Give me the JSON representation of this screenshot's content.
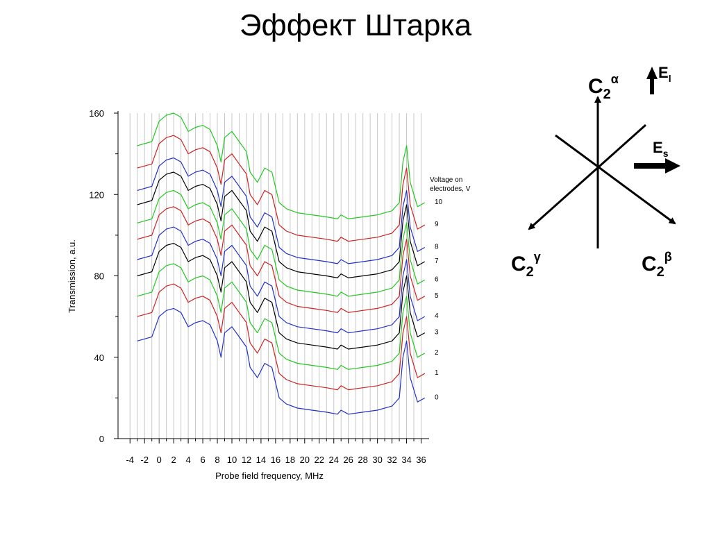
{
  "slide": {
    "title": "Эффект Штарка"
  },
  "chart_data": {
    "type": "line",
    "title": "",
    "xlabel": "Probe field frequency, MHz",
    "ylabel": "Transmission, a.u.",
    "xlim": [
      -4.5,
      37
    ],
    "ylim": [
      0,
      160
    ],
    "x_ticks": [
      -4,
      -2,
      0,
      2,
      4,
      6,
      8,
      10,
      12,
      14,
      16,
      18,
      20,
      22,
      24,
      26,
      28,
      30,
      32,
      34,
      36
    ],
    "y_ticks": [
      0,
      40,
      80,
      120,
      160
    ],
    "grid": "vertical",
    "legend_title": [
      "Voltage on",
      "electrodes, V"
    ],
    "legend_placement": "right",
    "x": [
      -3.0,
      -1.0,
      0.0,
      1.0,
      2.0,
      3.0,
      4.0,
      5.0,
      6.0,
      7.0,
      8.0,
      8.5,
      9.0,
      10.0,
      11.0,
      12.0,
      12.5,
      13.5,
      14.5,
      15.5,
      16.5,
      17.5,
      19.0,
      21.0,
      23.0,
      24.5,
      25.0,
      26.0,
      28.0,
      30.0,
      32.0,
      33.0,
      33.5,
      34.0,
      34.5,
      35.5,
      36.5
    ],
    "base": [
      48,
      50,
      60,
      63,
      64,
      62,
      55,
      57,
      58,
      56,
      48,
      40,
      52,
      55,
      50,
      45,
      35,
      30,
      37,
      35,
      20,
      17,
      15,
      14,
      13,
      12,
      14,
      12,
      13,
      14,
      16,
      20,
      40,
      48,
      30,
      18,
      20
    ],
    "series": [
      {
        "name": "0",
        "offset": 0,
        "color": "#2030c8"
      },
      {
        "name": "1",
        "offset": 12,
        "color": "#d02020"
      },
      {
        "name": "2",
        "offset": 22,
        "color": "#20c820"
      },
      {
        "name": "3",
        "offset": 32,
        "color": "#000000"
      },
      {
        "name": "4",
        "offset": 40,
        "color": "#2030c8"
      },
      {
        "name": "5",
        "offset": 50,
        "color": "#d02020"
      },
      {
        "name": "6",
        "offset": 58,
        "color": "#20c820"
      },
      {
        "name": "7",
        "offset": 67,
        "color": "#000000"
      },
      {
        "name": "8",
        "offset": 74,
        "color": "#2030c8"
      },
      {
        "name": "9",
        "offset": 85,
        "color": "#d02020"
      },
      {
        "name": "10",
        "offset": 96,
        "color": "#20c820"
      }
    ]
  },
  "diagram": {
    "labels": {
      "c2_alpha": {
        "base": "C",
        "sub": "2",
        "sup": "α"
      },
      "c2_beta": {
        "base": "C",
        "sub": "2",
        "sup": "β"
      },
      "c2_gamma": {
        "base": "C",
        "sub": "2",
        "sup": "γ"
      },
      "e_l": {
        "base": "E",
        "sub": "l"
      },
      "e_s": {
        "base": "E",
        "sub": "s"
      }
    }
  }
}
